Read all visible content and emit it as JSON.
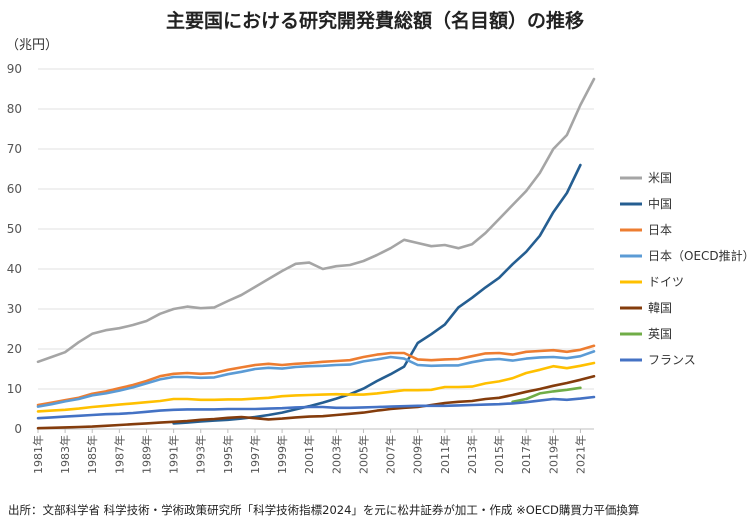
{
  "title": "主要国における研究開発費総額（名目額）の推移",
  "y_unit": "（兆円）",
  "source": "出所：文部科学省 科学技術・学術政策研究所「科学技術指標2024」を元に松井証券が加工・作成 ※OECD購買力平価換算",
  "chart_data": {
    "type": "line",
    "title": "主要国における研究開発費総額（名目額）の推移",
    "ylabel": "（兆円）",
    "xlabel": "",
    "ylim": [
      0,
      90
    ],
    "yticks": [
      0,
      10,
      20,
      30,
      40,
      50,
      60,
      70,
      80,
      90
    ],
    "grid": true,
    "legend_position": "right",
    "x": [
      1981,
      1982,
      1983,
      1984,
      1985,
      1986,
      1987,
      1988,
      1989,
      1990,
      1991,
      1992,
      1993,
      1994,
      1995,
      1996,
      1997,
      1998,
      1999,
      2000,
      2001,
      2002,
      2003,
      2004,
      2005,
      2006,
      2007,
      2008,
      2009,
      2010,
      2011,
      2012,
      2013,
      2014,
      2015,
      2016,
      2017,
      2018,
      2019,
      2020,
      2021,
      2022
    ],
    "x_tick_labels": [
      "1981年",
      "1983年",
      "1985年",
      "1987年",
      "1989年",
      "1991年",
      "1993年",
      "1995年",
      "1997年",
      "1999年",
      "2001年",
      "2003年",
      "2005年",
      "2007年",
      "2009年",
      "2011年",
      "2013年",
      "2015年",
      "2017年",
      "2019年",
      "2021年"
    ],
    "series": [
      {
        "name": "米国",
        "color": "#a5a5a5",
        "values": [
          16.8,
          18.0,
          19.2,
          21.7,
          23.8,
          24.7,
          25.2,
          26.0,
          27.0,
          28.8,
          30.0,
          30.6,
          30.2,
          30.4,
          32.0,
          33.5,
          35.5,
          37.5,
          39.5,
          41.3,
          41.6,
          40.0,
          40.7,
          41.0,
          42.0,
          43.5,
          45.2,
          47.3,
          46.5,
          45.7,
          46.0,
          45.2,
          46.2,
          49.0,
          52.5,
          56.0,
          59.5,
          64.0,
          70.0,
          73.5,
          81.0,
          87.5
        ]
      },
      {
        "name": "中国",
        "color": "#255e91",
        "values": [
          null,
          null,
          null,
          null,
          null,
          null,
          null,
          null,
          null,
          null,
          1.4,
          1.6,
          1.9,
          2.1,
          2.3,
          2.6,
          3.0,
          3.5,
          4.1,
          4.9,
          5.7,
          6.6,
          7.6,
          8.7,
          10.1,
          12.0,
          13.7,
          15.6,
          21.5,
          23.7,
          26.1,
          30.4,
          32.8,
          35.4,
          37.8,
          41.2,
          44.3,
          48.3,
          54.2,
          59.0,
          66.0,
          null
        ]
      },
      {
        "name": "日本",
        "color": "#ed7d31",
        "values": [
          6.0,
          6.6,
          7.2,
          7.8,
          8.8,
          9.4,
          10.2,
          11.0,
          12.0,
          13.2,
          13.8,
          14.0,
          13.8,
          14.0,
          14.8,
          15.4,
          16.0,
          16.3,
          16.0,
          16.3,
          16.5,
          16.8,
          17.0,
          17.2,
          18.0,
          18.6,
          19.0,
          19.0,
          17.4,
          17.2,
          17.4,
          17.5,
          18.2,
          18.9,
          19.0,
          18.6,
          19.3,
          19.5,
          19.7,
          19.3,
          19.8,
          20.8
        ]
      },
      {
        "name": "日本（OECD推計）",
        "color": "#5b9bd5",
        "values": [
          5.6,
          6.2,
          6.9,
          7.5,
          8.4,
          8.9,
          9.6,
          10.4,
          11.4,
          12.4,
          13.0,
          13.0,
          12.8,
          12.9,
          13.7,
          14.3,
          15.0,
          15.3,
          15.1,
          15.5,
          15.7,
          15.8,
          16.0,
          16.1,
          16.9,
          17.4,
          18.0,
          17.6,
          16.0,
          15.8,
          15.9,
          15.9,
          16.7,
          17.3,
          17.5,
          17.1,
          17.6,
          17.9,
          18.0,
          17.7,
          18.2,
          19.4
        ]
      },
      {
        "name": "ドイツ",
        "color": "#ffc000",
        "values": [
          4.4,
          4.6,
          4.8,
          5.1,
          5.5,
          5.8,
          6.1,
          6.4,
          6.7,
          7.0,
          7.5,
          7.5,
          7.3,
          7.3,
          7.4,
          7.4,
          7.6,
          7.8,
          8.2,
          8.4,
          8.5,
          8.6,
          8.7,
          8.6,
          8.6,
          8.9,
          9.3,
          9.7,
          9.7,
          9.8,
          10.5,
          10.5,
          10.6,
          11.4,
          11.9,
          12.7,
          14.0,
          14.8,
          15.7,
          15.2,
          15.8,
          16.5
        ]
      },
      {
        "name": "韓国",
        "color": "#843c0c",
        "values": [
          0.2,
          0.3,
          0.4,
          0.5,
          0.6,
          0.8,
          1.0,
          1.2,
          1.4,
          1.6,
          1.8,
          2.0,
          2.3,
          2.5,
          2.8,
          3.0,
          2.7,
          2.4,
          2.6,
          2.9,
          3.1,
          3.2,
          3.5,
          3.8,
          4.1,
          4.6,
          5.0,
          5.3,
          5.5,
          6.0,
          6.5,
          6.8,
          7.0,
          7.5,
          7.8,
          8.5,
          9.3,
          10.0,
          10.8,
          11.5,
          12.3,
          13.2
        ]
      },
      {
        "name": "英国",
        "color": "#70ad47",
        "values": [
          null,
          null,
          null,
          null,
          null,
          null,
          null,
          null,
          null,
          null,
          null,
          null,
          null,
          null,
          null,
          null,
          null,
          null,
          null,
          null,
          null,
          null,
          null,
          null,
          null,
          null,
          null,
          null,
          null,
          null,
          null,
          null,
          null,
          null,
          null,
          6.8,
          7.5,
          8.9,
          9.4,
          9.8,
          10.3,
          null
        ]
      },
      {
        "name": "フランス",
        "color": "#4472c4",
        "values": [
          2.7,
          2.9,
          3.1,
          3.3,
          3.5,
          3.7,
          3.8,
          4.0,
          4.3,
          4.6,
          4.8,
          4.9,
          4.9,
          4.9,
          5.0,
          5.0,
          5.0,
          5.1,
          5.2,
          5.4,
          5.5,
          5.5,
          5.3,
          5.3,
          5.4,
          5.5,
          5.6,
          5.7,
          5.8,
          5.8,
          5.8,
          5.9,
          6.0,
          6.1,
          6.2,
          6.4,
          6.7,
          7.1,
          7.5,
          7.3,
          7.6,
          8.0
        ]
      }
    ]
  }
}
